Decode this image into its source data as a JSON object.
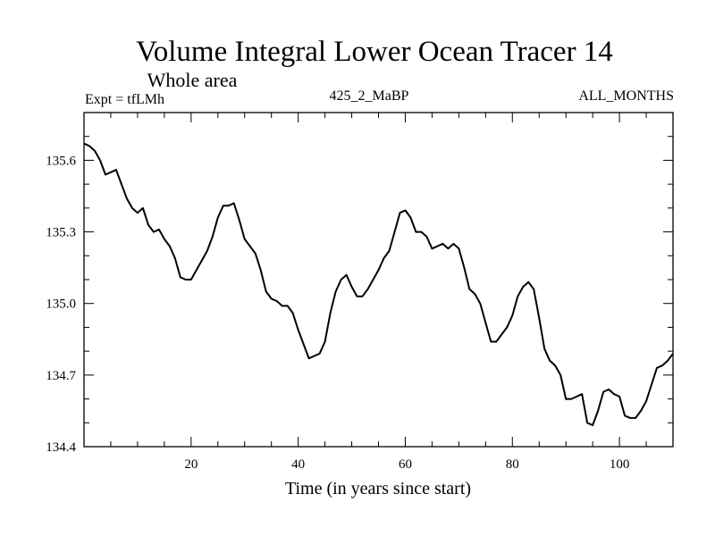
{
  "chart_data": {
    "type": "line",
    "title": "Volume Integral Lower Ocean Tracer 14",
    "subtitle": "Whole area",
    "left_label": "Expt = tfLMh",
    "center_label": "425_2_MaBP",
    "right_label": "ALL_MONTHS",
    "xlabel": "Time (in years since start)",
    "ylabel": "",
    "xlim": [
      0,
      110
    ],
    "ylim": [
      134.4,
      135.8
    ],
    "x_ticks": [
      20,
      40,
      60,
      80,
      100
    ],
    "y_ticks": [
      134.4,
      134.7,
      135.0,
      135.3,
      135.6
    ],
    "x_tick_labels": [
      "20",
      "40",
      "60",
      "80",
      "100"
    ],
    "y_tick_labels": [
      "134.4",
      "134.7",
      "135.0",
      "135.3",
      "135.6"
    ],
    "series": [
      {
        "name": "Tracer 14",
        "x": [
          0,
          1,
          2,
          3,
          4,
          5,
          6,
          7,
          8,
          9,
          10,
          11,
          12,
          13,
          14,
          15,
          16,
          17,
          18,
          19,
          20,
          21,
          22,
          23,
          24,
          25,
          26,
          27,
          28,
          29,
          30,
          31,
          32,
          33,
          34,
          35,
          36,
          37,
          38,
          39,
          40,
          41,
          42,
          43,
          44,
          45,
          46,
          47,
          48,
          49,
          50,
          51,
          52,
          53,
          54,
          55,
          56,
          57,
          58,
          59,
          60,
          61,
          62,
          63,
          64,
          65,
          66,
          67,
          68,
          69,
          70,
          71,
          72,
          73,
          74,
          75,
          76,
          77,
          78,
          79,
          80,
          81,
          82,
          83,
          84,
          85,
          86,
          87,
          88,
          89,
          90,
          91,
          92,
          93,
          94,
          95,
          96,
          97,
          98,
          99,
          100,
          101,
          102,
          103,
          104,
          105,
          106,
          107,
          108,
          109,
          110
        ],
        "values": [
          135.67,
          135.66,
          135.64,
          135.6,
          135.54,
          135.55,
          135.56,
          135.5,
          135.44,
          135.4,
          135.38,
          135.4,
          135.33,
          135.3,
          135.31,
          135.27,
          135.24,
          135.19,
          135.11,
          135.1,
          135.1,
          135.14,
          135.18,
          135.22,
          135.28,
          135.36,
          135.41,
          135.41,
          135.42,
          135.35,
          135.27,
          135.24,
          135.21,
          135.14,
          135.05,
          135.02,
          135.01,
          134.99,
          134.99,
          134.96,
          134.89,
          134.83,
          134.77,
          134.78,
          134.79,
          134.84,
          134.96,
          135.05,
          135.1,
          135.12,
          135.07,
          135.03,
          135.03,
          135.06,
          135.1,
          135.14,
          135.19,
          135.22,
          135.3,
          135.38,
          135.39,
          135.36,
          135.3,
          135.3,
          135.28,
          135.23,
          135.24,
          135.25,
          135.23,
          135.25,
          135.23,
          135.15,
          135.06,
          135.04,
          135.0,
          134.92,
          134.84,
          134.84,
          134.87,
          134.9,
          134.95,
          135.03,
          135.07,
          135.09,
          135.06,
          134.94,
          134.81,
          134.76,
          134.74,
          134.7,
          134.6,
          134.6,
          134.61,
          134.62,
          134.5,
          134.49,
          134.55,
          134.63,
          134.64,
          134.62,
          134.61,
          134.53,
          134.52,
          134.52,
          134.55,
          134.59,
          134.66,
          134.73,
          134.74,
          134.76,
          134.79
        ]
      }
    ]
  }
}
